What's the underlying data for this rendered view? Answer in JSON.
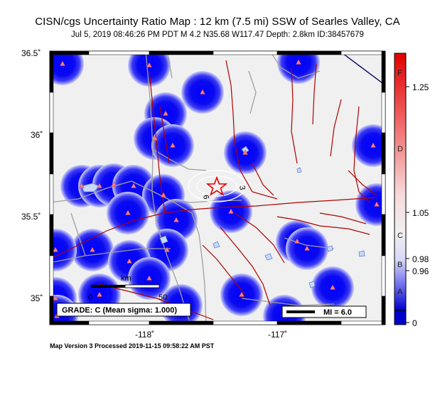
{
  "header": {
    "title": "CISN/cgs Uncertainty Ratio Map : 12 km (7.5 mi) SSW of Searles Valley, CA",
    "subtitle": "Jul  5, 2019 08:46:26 PM PDT   M 4.2   N35.68 W117.47   Depth: 2.8km   ID:38457679"
  },
  "footer": {
    "text": "Map Version 3 Processed 2019-11-15 09:58:22 AM PST"
  },
  "axes": {
    "lat_ticks": [
      "36.5˚",
      "36˚",
      "35.5˚",
      "35˚"
    ],
    "lon_ticks": [
      "-118˚",
      "-117˚"
    ]
  },
  "grade_box": {
    "text": "GRADE: C (Mean sigma: 1.000)"
  },
  "scale_bar": {
    "unit": "km",
    "start": "0",
    "end": "50"
  },
  "mi_legend": {
    "text": "MI = 6.0"
  },
  "contours": {
    "label_a": "6",
    "label_b": "3"
  },
  "colorbar": {
    "values": [
      "1.25",
      "1.05",
      "0.98",
      "0.96",
      "0"
    ],
    "letters": [
      "F",
      "D",
      "C",
      "B",
      "A"
    ],
    "colors": {
      "top": "#e00000",
      "mid": "#f0f0f0",
      "bottom": "#0000cc"
    }
  },
  "colors": {
    "station_blue": "#1010e0",
    "background_grey": "#f0f0f0",
    "fault_red": "#b00000",
    "road_grey": "#a0a0a0",
    "epicenter": "#e00000"
  }
}
